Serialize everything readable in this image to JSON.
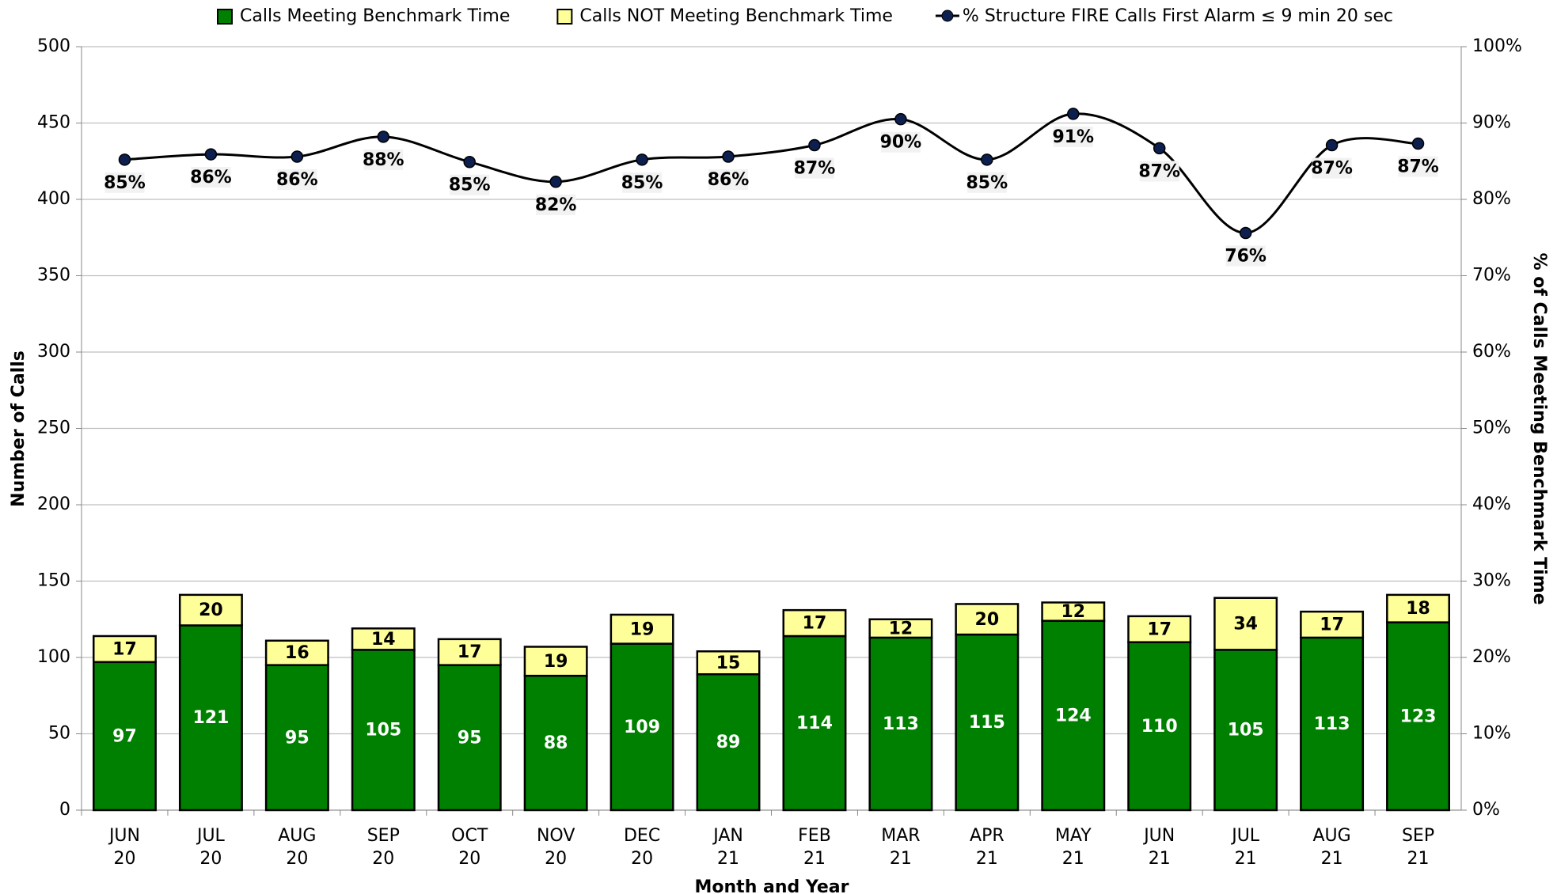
{
  "chart_data": {
    "type": "bar-line",
    "x_title": "Month and Year",
    "y_title": "Number of Calls",
    "y2_title": "% of Calls Meeting Benchmark Time",
    "categories": [
      "JUN\n20",
      "JUL\n20",
      "AUG\n20",
      "SEP\n20",
      "OCT\n20",
      "NOV\n20",
      "DEC\n20",
      "JAN\n21",
      "FEB\n21",
      "MAR\n21",
      "APR\n21",
      "MAY\n21",
      "JUN\n21",
      "JUL\n21",
      "AUG\n21",
      "SEP\n21"
    ],
    "series": [
      {
        "name": "Calls Meeting Benchmark Time",
        "type": "bar",
        "color": "#008000",
        "values": [
          97,
          121,
          95,
          105,
          95,
          88,
          109,
          89,
          114,
          113,
          115,
          124,
          110,
          105,
          113,
          123
        ]
      },
      {
        "name": "Calls NOT Meeting Benchmark Time",
        "type": "bar",
        "color": "#ffff99",
        "values": [
          17,
          20,
          16,
          14,
          17,
          19,
          19,
          15,
          17,
          12,
          20,
          12,
          17,
          34,
          17,
          18
        ]
      },
      {
        "name": "% Structure FIRE Calls First Alarm ≤ 9 min 20 sec",
        "type": "line",
        "axis": "y2",
        "color": "#000000",
        "marker_color": "#0d1f4f",
        "values": [
          85.2,
          85.9,
          85.6,
          88.2,
          84.9,
          82.3,
          85.2,
          85.6,
          87.1,
          90.5,
          85.2,
          91.2,
          86.7,
          75.6,
          87.1,
          87.3
        ],
        "value_labels": [
          "85%",
          "86%",
          "86%",
          "88%",
          "85%",
          "82%",
          "85%",
          "86%",
          "87%",
          "90%",
          "85%",
          "91%",
          "87%",
          "76%",
          "87%",
          "87%"
        ]
      }
    ],
    "ylim": [
      0,
      500
    ],
    "yticks": [
      0,
      50,
      100,
      150,
      200,
      250,
      300,
      350,
      400,
      450,
      500
    ],
    "y2lim": [
      0,
      100
    ],
    "y2ticks": [
      {
        "value": 0,
        "label": "0%"
      },
      {
        "value": 10,
        "label": "10%"
      },
      {
        "value": 20,
        "label": "20%"
      },
      {
        "value": 30,
        "label": "30%"
      },
      {
        "value": 40,
        "label": "40%"
      },
      {
        "value": 50,
        "label": "50%"
      },
      {
        "value": 60,
        "label": "60%"
      },
      {
        "value": 70,
        "label": "70%"
      },
      {
        "value": 80,
        "label": "80%"
      },
      {
        "value": 90,
        "label": "90%"
      },
      {
        "value": 100,
        "label": "100%"
      }
    ],
    "grid": true
  }
}
